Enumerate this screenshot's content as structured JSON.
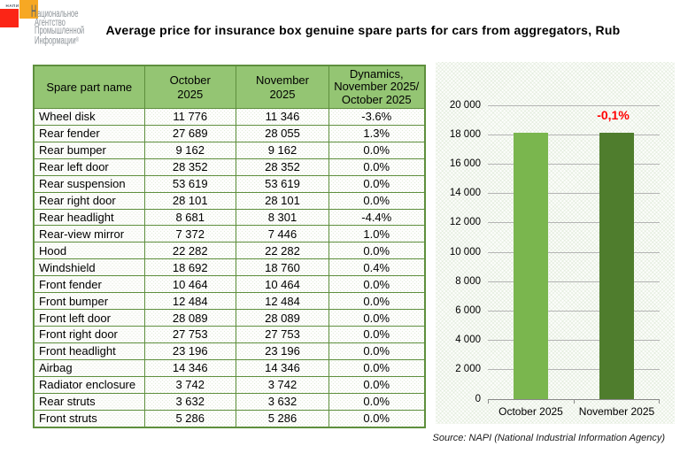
{
  "logo": {
    "brand_small": "НАПИ",
    "name_initial": "Н",
    "name_line1_rest": "ациональное",
    "name_line2": "Агентство",
    "name_line3": "Промышленной",
    "name_line4": "Информации",
    "reg_mark": "®",
    "colors": {
      "red_square": "#fb2516",
      "orange_square": "#f7a823",
      "name_text": "#8e9599",
      "initial_letter": "#55667a"
    }
  },
  "title": "Average price for insurance box genuine spare parts for cars from aggregators, Rub",
  "table": {
    "headers": {
      "part": "Spare part name",
      "october": "October\n2025",
      "november": "November\n2025",
      "dynamics": "Dynamics,\nNovember 2025/\nOctober 2025"
    },
    "header_fill": "#94c573",
    "border_color": "#5e8f3d",
    "rows": [
      {
        "name": "Wheel disk",
        "oct": "11 776",
        "nov": "11 346",
        "dyn": "-3.6%"
      },
      {
        "name": "Rear fender",
        "oct": "27 689",
        "nov": "28 055",
        "dyn": "1.3%"
      },
      {
        "name": "Rear bumper",
        "oct": "9 162",
        "nov": "9 162",
        "dyn": "0.0%"
      },
      {
        "name": "Rear left door",
        "oct": "28 352",
        "nov": "28 352",
        "dyn": "0.0%"
      },
      {
        "name": "Rear suspension",
        "oct": "53 619",
        "nov": "53 619",
        "dyn": "0.0%"
      },
      {
        "name": "Rear right door",
        "oct": "28 101",
        "nov": "28 101",
        "dyn": "0.0%"
      },
      {
        "name": "Rear headlight",
        "oct": "8 681",
        "nov": "8 301",
        "dyn": "-4.4%"
      },
      {
        "name": "Rear-view mirror",
        "oct": "7 372",
        "nov": "7 446",
        "dyn": "1.0%"
      },
      {
        "name": "Hood",
        "oct": "22 282",
        "nov": "22 282",
        "dyn": "0.0%"
      },
      {
        "name": "Windshield",
        "oct": "18 692",
        "nov": "18 760",
        "dyn": "0.4%"
      },
      {
        "name": "Front fender",
        "oct": "10 464",
        "nov": "10 464",
        "dyn": "0.0%"
      },
      {
        "name": "Front bumper",
        "oct": "12 484",
        "nov": "12 484",
        "dyn": "0.0%"
      },
      {
        "name": "Front left door",
        "oct": "28 089",
        "nov": "28 089",
        "dyn": "0.0%"
      },
      {
        "name": "Front right door",
        "oct": "27 753",
        "nov": "27 753",
        "dyn": "0.0%"
      },
      {
        "name": "Front headlight",
        "oct": "23 196",
        "nov": "23 196",
        "dyn": "0.0%"
      },
      {
        "name": "Airbag",
        "oct": "14 346",
        "nov": "14 346",
        "dyn": "0.0%"
      },
      {
        "name": "Radiator enclosure",
        "oct": "3 742",
        "nov": "3 742",
        "dyn": "0.0%"
      },
      {
        "name": "Rear struts",
        "oct": "3 632",
        "nov": "3 632",
        "dyn": "0.0%"
      },
      {
        "name": "Front struts",
        "oct": "5 286",
        "nov": "5 286",
        "dyn": "0.0%"
      }
    ]
  },
  "chart_data": {
    "type": "bar",
    "categories": [
      "October 2025",
      "November 2025"
    ],
    "values": [
      18143,
      18127
    ],
    "bar_colors": [
      "#7ab64e",
      "#4f7d2d"
    ],
    "annotation": {
      "text": "-0,1%",
      "color": "#ff0000",
      "on_category_index": 1
    },
    "ylim": [
      0,
      20000
    ],
    "ytick_step": 2000,
    "ytick_labels": [
      "0",
      "2 000",
      "4 000",
      "6 000",
      "8 000",
      "10 000",
      "12 000",
      "14 000",
      "16 000",
      "18 000",
      "20 000"
    ],
    "grid": true,
    "gridline_color": "#b4b4b4",
    "axis_color": "#898989"
  },
  "source": "Source: NAPI (National Industrial Information Agency)"
}
